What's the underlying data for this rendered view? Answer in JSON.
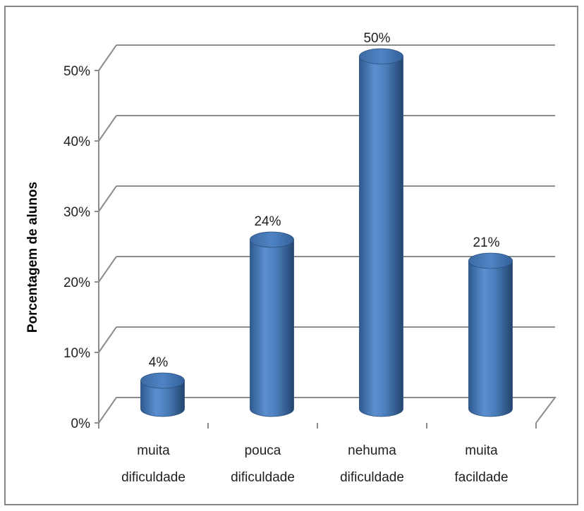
{
  "chart_data": {
    "type": "bar",
    "title": "",
    "xlabel": "",
    "ylabel": "Porcentagem de alunos",
    "ylim": [
      0,
      50
    ],
    "yticks": [
      "0%",
      "10%",
      "20%",
      "30%",
      "40%",
      "50%"
    ],
    "ytick_values": [
      0,
      10,
      20,
      30,
      40,
      50
    ],
    "categories": [
      [
        "muita",
        "dificuldade"
      ],
      [
        "pouca",
        "dificuldade"
      ],
      [
        "nehuma",
        "dificuldade"
      ],
      [
        "muita",
        "facildade"
      ]
    ],
    "values": [
      4,
      24,
      50,
      21
    ],
    "data_labels": [
      "4%",
      "24%",
      "50%",
      "21%"
    ],
    "grid": true,
    "style": "3d-cylinder",
    "bar_color": "#4a7ebb"
  }
}
